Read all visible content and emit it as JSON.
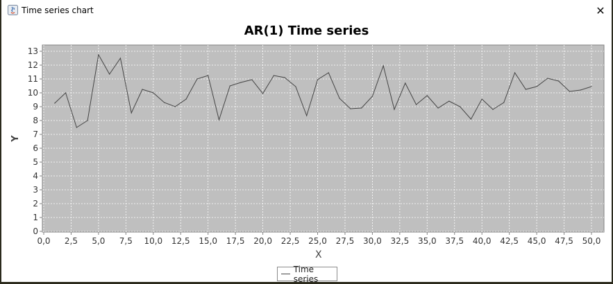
{
  "window": {
    "title": "Time series chart",
    "close_glyph": "✕"
  },
  "legend": {
    "label": "Time series",
    "color": "#444444"
  },
  "colors": {
    "plot_background": "#bfbfbf",
    "gridline": "#ffffff",
    "series_line": "#444444"
  },
  "chart_data": {
    "type": "line",
    "title": "AR(1) Time series",
    "xlabel": "X",
    "ylabel": "Y",
    "xlim": [
      0,
      50.5
    ],
    "ylim": [
      0,
      13.2
    ],
    "x_ticks": [
      "0,0",
      "2,5",
      "5,0",
      "7,5",
      "10,0",
      "12,5",
      "15,0",
      "17,5",
      "20,0",
      "22,5",
      "25,0",
      "27,5",
      "30,0",
      "32,5",
      "35,0",
      "37,5",
      "40,0",
      "42,5",
      "45,0",
      "47,5",
      "50,0"
    ],
    "y_ticks": [
      "0",
      "1",
      "2",
      "3",
      "4",
      "5",
      "6",
      "7",
      "8",
      "9",
      "10",
      "11",
      "12",
      "13"
    ],
    "grid": true,
    "legend_position": "bottom-center",
    "series": [
      {
        "name": "Time series",
        "x": [
          1,
          2,
          3,
          4,
          5,
          6,
          7,
          8,
          9,
          10,
          11,
          12,
          13,
          14,
          15,
          16,
          17,
          18,
          19,
          20,
          21,
          22,
          23,
          24,
          25,
          26,
          27,
          28,
          29,
          30,
          31,
          32,
          33,
          34,
          35,
          36,
          37,
          38,
          39,
          40,
          41,
          42,
          43,
          44,
          45,
          46,
          47,
          48,
          49,
          50
        ],
        "y": [
          9.25,
          10.0,
          7.5,
          8.0,
          12.75,
          11.35,
          12.5,
          8.55,
          10.25,
          10.0,
          9.3,
          9.0,
          9.55,
          11.0,
          11.25,
          8.05,
          10.5,
          10.75,
          10.95,
          9.95,
          11.25,
          11.1,
          10.45,
          8.35,
          10.95,
          11.45,
          9.6,
          8.85,
          8.9,
          9.75,
          11.95,
          8.8,
          10.7,
          9.15,
          9.8,
          8.9,
          9.4,
          9.0,
          8.1,
          9.55,
          8.8,
          9.3,
          11.45,
          10.25,
          10.45,
          11.05,
          10.85,
          10.1,
          10.2,
          10.45
        ]
      }
    ]
  }
}
